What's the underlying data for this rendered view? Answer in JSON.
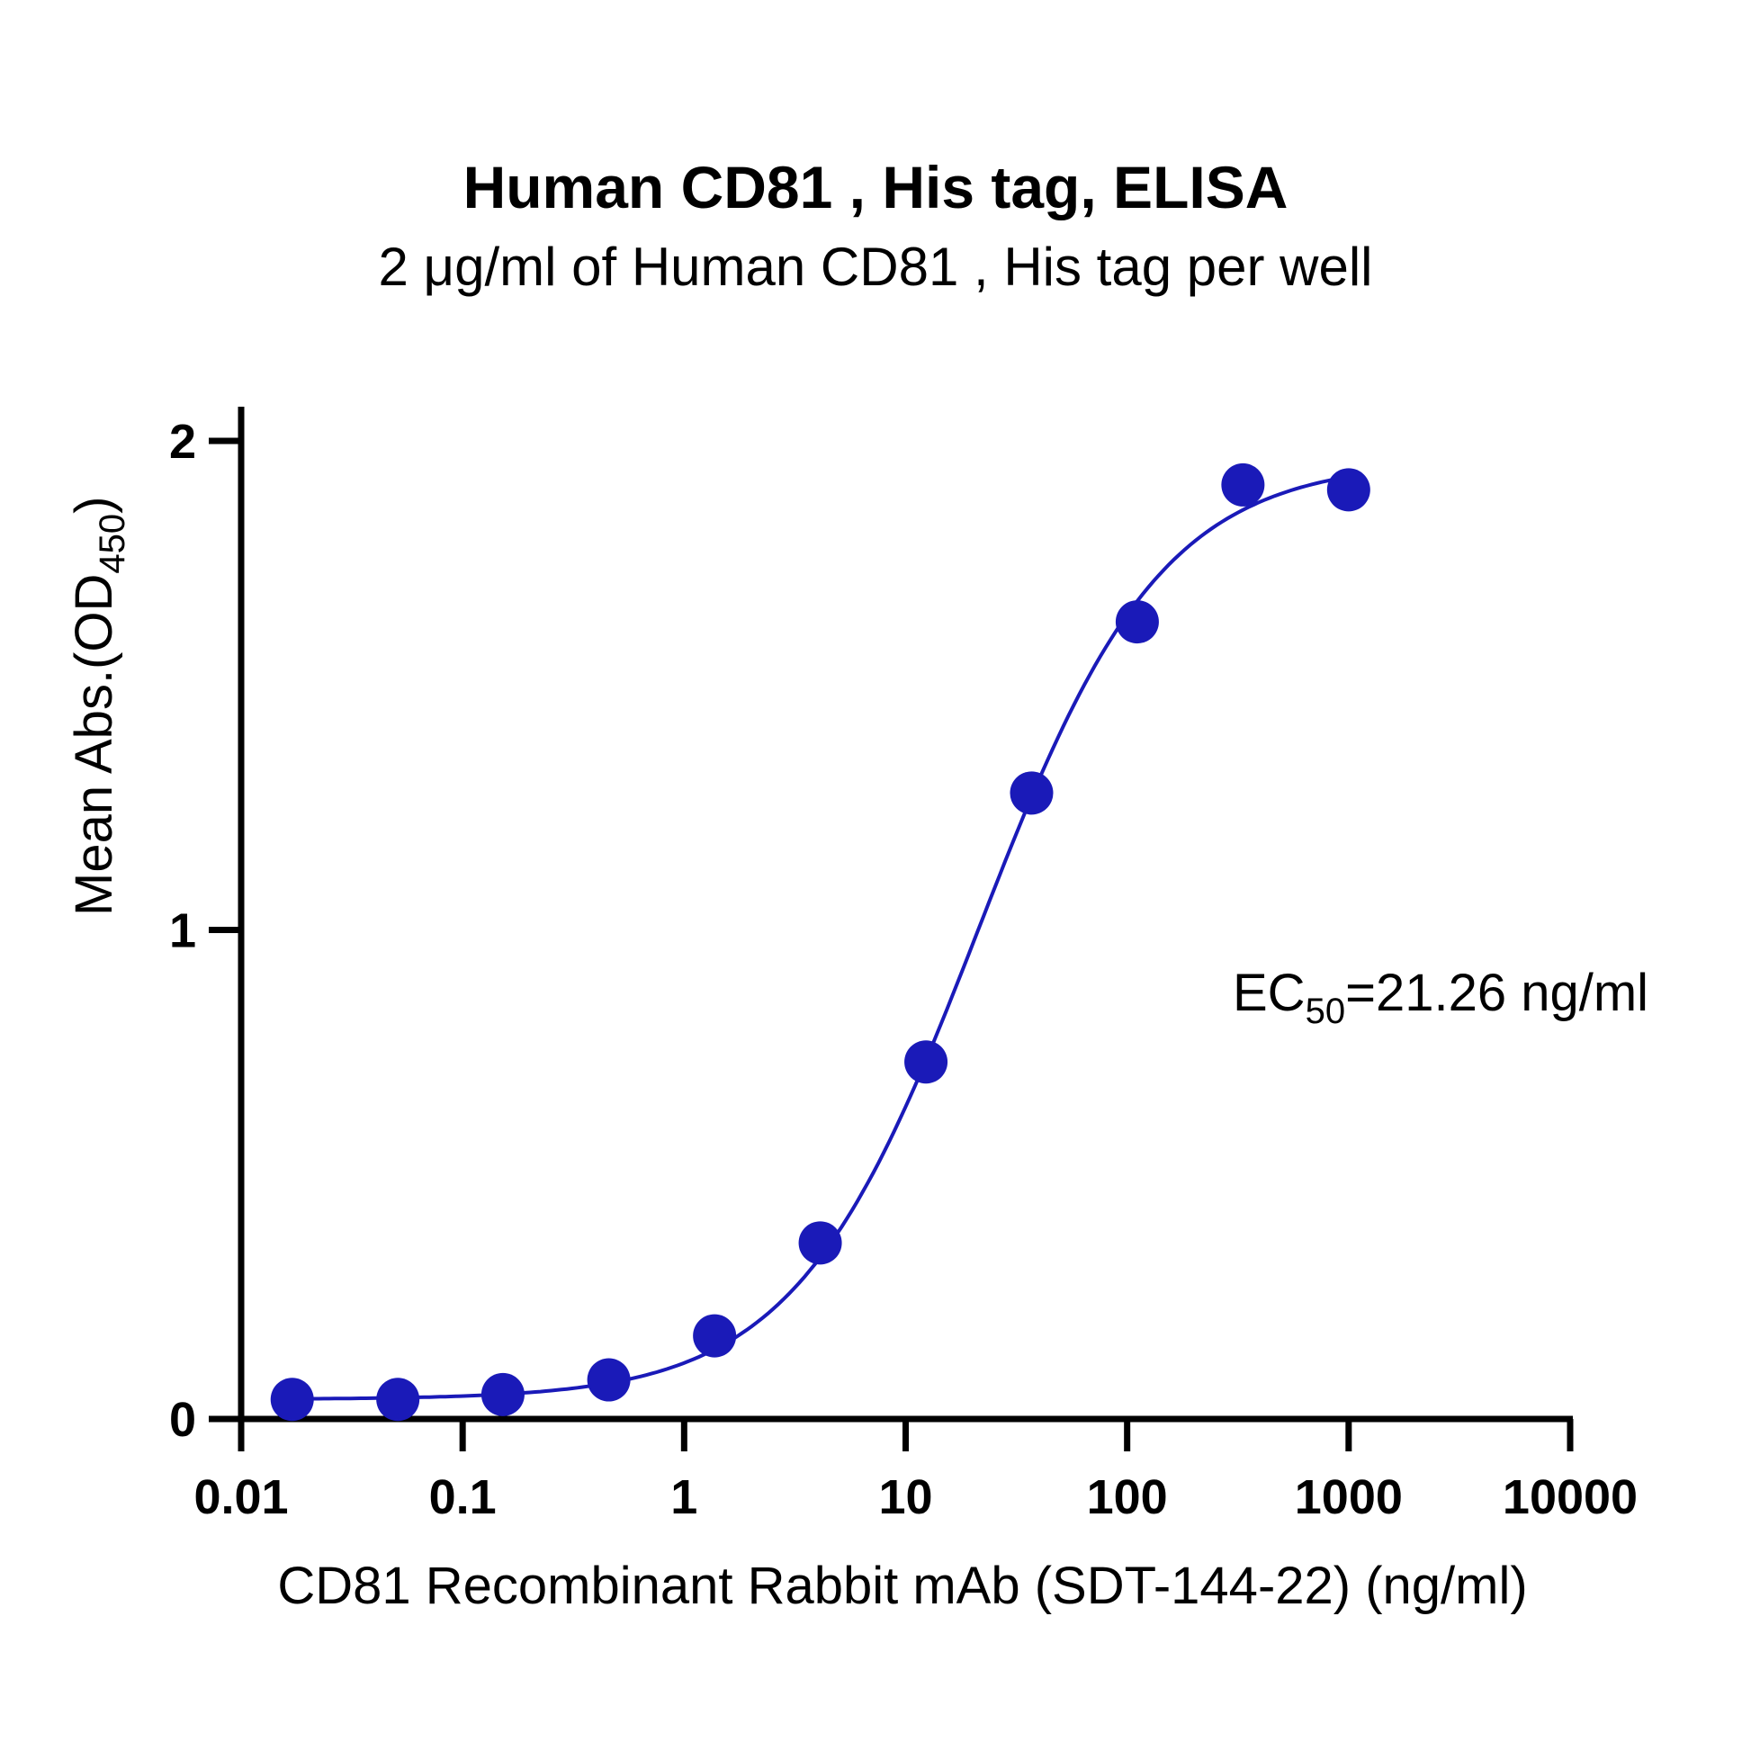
{
  "chart_data": {
    "type": "scatter",
    "title": "Human CD81 , His tag, ELISA",
    "subtitle": "2 μg/ml of Human CD81 , His tag per well",
    "xlabel": "CD81 Recombinant Rabbit mAb (SDT-144-22) (ng/ml)",
    "ylabel": {
      "main": "Mean Abs.(OD",
      "sub": "450",
      "tail": ")"
    },
    "x_scale": "log",
    "xlim": [
      0.01,
      10000
    ],
    "ylim": [
      0,
      2.3
    ],
    "x_ticks": [
      0.01,
      0.1,
      1,
      10,
      100,
      1000,
      10000
    ],
    "x_tick_labels": [
      "0.01",
      "0.1",
      "1",
      "10",
      "100",
      "1000",
      "10000"
    ],
    "y_ticks": [
      0,
      1,
      2
    ],
    "y_tick_labels": [
      "0",
      "1",
      "2"
    ],
    "grid": false,
    "series": [
      {
        "x": [
          0.017,
          0.051,
          0.152,
          0.457,
          1.372,
          4.115,
          12.35,
          37.04,
          111.1,
          333.3,
          1000
        ],
        "y": [
          0.04,
          0.04,
          0.05,
          0.08,
          0.17,
          0.36,
          0.73,
          1.28,
          1.63,
          1.91,
          1.9
        ],
        "color": "#1a1ab8",
        "fit": "4PL"
      }
    ],
    "fit_params": {
      "bottom": 0.04,
      "top": 1.96,
      "ec50": 21.26,
      "hill": 1.05
    },
    "annotation": {
      "main": "EC",
      "sub": "50",
      "tail": "=21.26 ng/ml"
    }
  }
}
